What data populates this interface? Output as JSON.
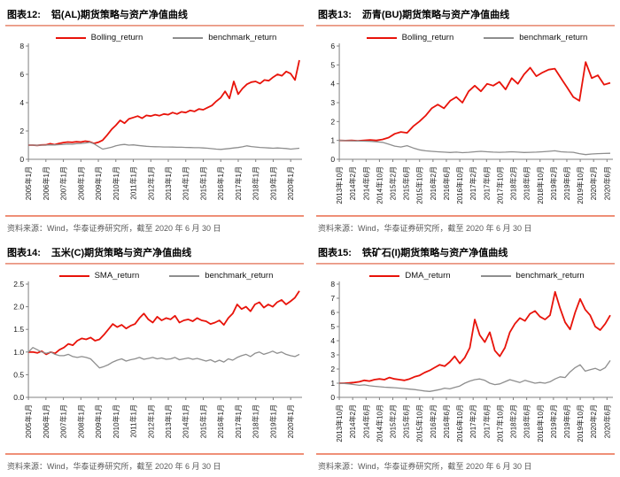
{
  "chart_data": [
    {
      "figure_label": "图表12:",
      "title": "铝(AL)期货策略与资产净值曲线",
      "source": "资料来源：Wind，华泰证券研究所，截至 2020 年 6 月 30 日",
      "type": "line",
      "grid": false,
      "legend_position": "top-center",
      "ylim": [
        0,
        8
      ],
      "yticks": [
        "0",
        "2",
        "4",
        "6",
        "8"
      ],
      "x_tick_span": 0.968,
      "x_tick_labels": [
        "2005年1月",
        "2006年1月",
        "2007年1月",
        "2008年1月",
        "2009年1月",
        "2010年1月",
        "2011年1月",
        "2012年1月",
        "2013年1月",
        "2014年1月",
        "2015年1月",
        "2016年1月",
        "2017年1月",
        "2018年1月",
        "2019年1月",
        "2020年1月"
      ],
      "series": [
        {
          "name": "Bolling_return",
          "color": "#e8130a",
          "values": [
            1.0,
            1.0,
            0.98,
            1.01,
            1.02,
            1.1,
            1.03,
            1.12,
            1.18,
            1.22,
            1.2,
            1.24,
            1.22,
            1.28,
            1.24,
            1.12,
            1.2,
            1.35,
            1.7,
            2.1,
            2.4,
            2.75,
            2.55,
            2.85,
            2.95,
            3.05,
            2.9,
            3.1,
            3.05,
            3.15,
            3.08,
            3.2,
            3.15,
            3.3,
            3.2,
            3.35,
            3.3,
            3.45,
            3.38,
            3.55,
            3.5,
            3.65,
            3.8,
            4.1,
            4.35,
            4.8,
            4.3,
            5.5,
            4.6,
            5.0,
            5.3,
            5.45,
            5.5,
            5.35,
            5.6,
            5.55,
            5.8,
            6.0,
            5.9,
            6.2,
            6.05,
            5.6,
            7.0
          ]
        },
        {
          "name": "benchmark_return",
          "color": "#8e8e8e",
          "values": [
            1.0,
            1.0,
            0.99,
            1.0,
            1.0,
            1.02,
            1.01,
            1.03,
            1.05,
            1.08,
            1.06,
            1.1,
            1.12,
            1.15,
            1.2,
            1.1,
            0.9,
            0.72,
            0.78,
            0.85,
            0.95,
            1.02,
            1.05,
            1.0,
            1.02,
            0.98,
            0.95,
            0.92,
            0.9,
            0.89,
            0.88,
            0.87,
            0.87,
            0.86,
            0.85,
            0.85,
            0.84,
            0.83,
            0.82,
            0.82,
            0.8,
            0.78,
            0.75,
            0.72,
            0.7,
            0.73,
            0.76,
            0.8,
            0.83,
            0.88,
            0.95,
            0.9,
            0.87,
            0.84,
            0.82,
            0.8,
            0.78,
            0.8,
            0.78,
            0.76,
            0.72,
            0.75,
            0.78
          ]
        }
      ]
    },
    {
      "figure_label": "图表13:",
      "title": "沥青(BU)期货策略与资产净值曲线",
      "source": "资料来源：Wind，华泰证券研究所，截至 2020 年 6 月 30 日",
      "type": "line",
      "grid": false,
      "legend_position": "top-center",
      "ylim": [
        0,
        6
      ],
      "yticks": [
        "0",
        "1",
        "2",
        "3",
        "4",
        "5",
        "6"
      ],
      "x_tick_span": 0.988,
      "x_tick_labels": [
        "2013年10月",
        "2014年2月",
        "2014年6月",
        "2014年10月",
        "2015年2月",
        "2015年6月",
        "2015年10月",
        "2016年2月",
        "2016年6月",
        "2016年10月",
        "2017年2月",
        "2017年6月",
        "2017年10月",
        "2018年2月",
        "2018年6月",
        "2018年10月",
        "2019年2月",
        "2019年6月",
        "2019年10月",
        "2020年2月",
        "2020年6月"
      ],
      "series": [
        {
          "name": "Bolling_return",
          "color": "#e8130a",
          "values": [
            1.0,
            0.99,
            1.0,
            0.98,
            1.0,
            1.02,
            1.0,
            1.05,
            1.15,
            1.35,
            1.45,
            1.4,
            1.75,
            2.0,
            2.3,
            2.7,
            2.9,
            2.7,
            3.1,
            3.3,
            3.0,
            3.6,
            3.9,
            3.6,
            4.0,
            3.9,
            4.1,
            3.7,
            4.3,
            4.0,
            4.5,
            4.85,
            4.4,
            4.6,
            4.75,
            4.8,
            4.3,
            3.8,
            3.3,
            3.1,
            5.15,
            4.3,
            4.45,
            3.95,
            4.05
          ]
        },
        {
          "name": "benchmark_return",
          "color": "#8e8e8e",
          "values": [
            1.0,
            0.99,
            0.98,
            0.97,
            0.96,
            0.95,
            0.93,
            0.9,
            0.8,
            0.7,
            0.65,
            0.72,
            0.6,
            0.5,
            0.45,
            0.42,
            0.4,
            0.38,
            0.36,
            0.38,
            0.35,
            0.37,
            0.4,
            0.42,
            0.4,
            0.38,
            0.37,
            0.38,
            0.4,
            0.38,
            0.36,
            0.37,
            0.38,
            0.4,
            0.42,
            0.45,
            0.4,
            0.38,
            0.37,
            0.3,
            0.25,
            0.28,
            0.3,
            0.31,
            0.32
          ]
        }
      ]
    },
    {
      "figure_label": "图表14:",
      "title": "玉米(C)期货策略与资产净值曲线",
      "source": "资料来源：Wind，华泰证券研究所，截至 2020 年 6 月 30 日",
      "type": "line",
      "grid": false,
      "legend_position": "top-center",
      "ylim": [
        0,
        2.5
      ],
      "yticks": [
        "0.0",
        "0.5",
        "1.0",
        "1.5",
        "2.0",
        "2.5"
      ],
      "x_tick_span": 0.968,
      "x_tick_labels": [
        "2005年1月",
        "2006年1月",
        "2007年1月",
        "2008年1月",
        "2009年1月",
        "2010年1月",
        "2011年1月",
        "2012年1月",
        "2013年1月",
        "2014年1月",
        "2015年1月",
        "2016年1月",
        "2017年1月",
        "2018年1月",
        "2019年1月",
        "2020年1月"
      ],
      "series": [
        {
          "name": "SMA_return",
          "color": "#e8130a",
          "values": [
            1.0,
            1.0,
            0.98,
            1.02,
            0.95,
            1.0,
            0.97,
            1.05,
            1.1,
            1.18,
            1.15,
            1.25,
            1.3,
            1.28,
            1.32,
            1.25,
            1.28,
            1.38,
            1.5,
            1.62,
            1.55,
            1.6,
            1.52,
            1.58,
            1.62,
            1.75,
            1.85,
            1.72,
            1.65,
            1.78,
            1.7,
            1.75,
            1.72,
            1.8,
            1.65,
            1.7,
            1.72,
            1.68,
            1.75,
            1.7,
            1.68,
            1.62,
            1.65,
            1.7,
            1.6,
            1.75,
            1.85,
            2.05,
            1.95,
            2.0,
            1.9,
            2.05,
            2.1,
            1.98,
            2.05,
            2.0,
            2.1,
            2.15,
            2.05,
            2.12,
            2.2,
            2.35
          ]
        },
        {
          "name": "benchmark_return",
          "color": "#8e8e8e",
          "values": [
            1.0,
            1.1,
            1.05,
            1.0,
            0.97,
            1.0,
            0.95,
            0.92,
            0.92,
            0.95,
            0.9,
            0.88,
            0.9,
            0.88,
            0.85,
            0.75,
            0.65,
            0.68,
            0.72,
            0.78,
            0.82,
            0.85,
            0.8,
            0.83,
            0.85,
            0.88,
            0.84,
            0.86,
            0.88,
            0.85,
            0.87,
            0.84,
            0.85,
            0.88,
            0.83,
            0.85,
            0.87,
            0.84,
            0.86,
            0.83,
            0.8,
            0.83,
            0.78,
            0.82,
            0.78,
            0.85,
            0.82,
            0.88,
            0.92,
            0.95,
            0.9,
            0.97,
            1.0,
            0.95,
            0.98,
            1.02,
            0.97,
            1.0,
            0.95,
            0.92,
            0.9,
            0.95
          ]
        }
      ]
    },
    {
      "figure_label": "图表15:",
      "title": "铁矿石(I)期货策略与资产净值曲线",
      "source": "资料来源：Wind，华泰证券研究所，截至 2020 年 6 月 30 日",
      "type": "line",
      "grid": false,
      "legend_position": "top-center",
      "ylim": [
        0,
        8
      ],
      "yticks": [
        "0",
        "1",
        "2",
        "3",
        "4",
        "5",
        "6",
        "7",
        "8"
      ],
      "x_tick_span": 0.988,
      "x_tick_labels": [
        "2013年10月",
        "2014年2月",
        "2014年6月",
        "2014年10月",
        "2015年2月",
        "2015年6月",
        "2015年10月",
        "2016年2月",
        "2016年6月",
        "2016年10月",
        "2017年2月",
        "2017年6月",
        "2017年10月",
        "2018年2月",
        "2018年6月",
        "2018年10月",
        "2019年2月",
        "2019年6月",
        "2019年10月",
        "2020年2月",
        "2020年6月"
      ],
      "series": [
        {
          "name": "DMA_return",
          "color": "#e8130a",
          "values": [
            1.0,
            1.0,
            1.02,
            1.05,
            1.1,
            1.2,
            1.15,
            1.25,
            1.3,
            1.25,
            1.4,
            1.3,
            1.25,
            1.2,
            1.3,
            1.45,
            1.55,
            1.75,
            1.9,
            2.1,
            2.3,
            2.2,
            2.5,
            2.9,
            2.4,
            2.8,
            3.5,
            5.5,
            4.4,
            3.9,
            4.6,
            3.3,
            2.9,
            3.5,
            4.6,
            5.2,
            5.6,
            5.4,
            5.9,
            6.1,
            5.7,
            5.5,
            5.8,
            7.45,
            6.3,
            5.3,
            4.8,
            6.0,
            6.95,
            6.2,
            5.8,
            5.0,
            4.75,
            5.2,
            5.8
          ]
        },
        {
          "name": "benchmark_return",
          "color": "#8e8e8e",
          "values": [
            1.0,
            0.98,
            0.95,
            0.9,
            0.85,
            0.88,
            0.82,
            0.78,
            0.75,
            0.72,
            0.7,
            0.68,
            0.65,
            0.62,
            0.58,
            0.55,
            0.5,
            0.45,
            0.42,
            0.48,
            0.55,
            0.65,
            0.6,
            0.7,
            0.8,
            1.0,
            1.15,
            1.25,
            1.3,
            1.2,
            1.0,
            0.9,
            0.95,
            1.1,
            1.25,
            1.15,
            1.05,
            1.2,
            1.1,
            1.0,
            1.05,
            1.0,
            1.1,
            1.3,
            1.45,
            1.4,
            1.8,
            2.1,
            2.3,
            1.85,
            1.95,
            2.05,
            1.9,
            2.1,
            2.6
          ]
        }
      ]
    }
  ]
}
